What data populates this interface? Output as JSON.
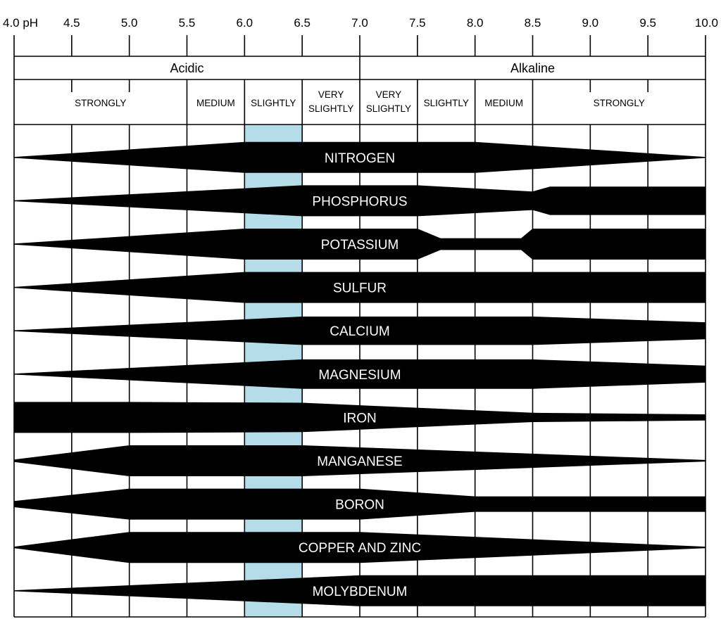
{
  "chart_data": {
    "type": "band-chart",
    "x_axis": {
      "range": [
        4.0,
        10.0
      ],
      "ticks": [
        {
          "value": 4.0,
          "label": "4.0 pH"
        },
        {
          "value": 4.5,
          "label": "4.5"
        },
        {
          "value": 5.0,
          "label": "5.0"
        },
        {
          "value": 5.5,
          "label": "5.5"
        },
        {
          "value": 6.0,
          "label": "6.0"
        },
        {
          "value": 6.5,
          "label": "6.5"
        },
        {
          "value": 7.0,
          "label": "7.0"
        },
        {
          "value": 7.5,
          "label": "7.5"
        },
        {
          "value": 8.0,
          "label": "8.0"
        },
        {
          "value": 8.5,
          "label": "8.5"
        },
        {
          "value": 9.0,
          "label": "9.0"
        },
        {
          "value": 9.5,
          "label": "9.5"
        },
        {
          "value": 10.0,
          "label": "10.0"
        }
      ]
    },
    "groups": [
      {
        "label": "Acidic",
        "from": 4.0,
        "to": 7.0
      },
      {
        "label": "Alkaline",
        "from": 7.0,
        "to": 10.0
      }
    ],
    "degrees": [
      {
        "lines": [
          "STRONGLY"
        ],
        "from": 4.0,
        "to": 5.5
      },
      {
        "lines": [
          "MEDIUM"
        ],
        "from": 5.5,
        "to": 6.0
      },
      {
        "lines": [
          "SLIGHTLY"
        ],
        "from": 6.0,
        "to": 6.5
      },
      {
        "lines": [
          "VERY",
          "SLIGHTLY"
        ],
        "from": 6.5,
        "to": 7.0
      },
      {
        "lines": [
          "VERY",
          "SLIGHTLY"
        ],
        "from": 7.0,
        "to": 7.5
      },
      {
        "lines": [
          "SLIGHTLY"
        ],
        "from": 7.5,
        "to": 8.0
      },
      {
        "lines": [
          "MEDIUM"
        ],
        "from": 8.0,
        "to": 8.5
      },
      {
        "lines": [
          "STRONGLY"
        ],
        "from": 8.5,
        "to": 10.0
      }
    ],
    "highlight_range": [
      6.0,
      6.5
    ],
    "highlight_color": "#b5dde9",
    "band_color": "#000000",
    "nutrients": [
      {
        "name": "NITROGEN",
        "profile": [
          [
            4.0,
            0.03
          ],
          [
            6.0,
            1.0
          ],
          [
            8.0,
            1.0
          ],
          [
            10.0,
            0.03
          ]
        ]
      },
      {
        "name": "PHOSPHORUS",
        "profile": [
          [
            4.0,
            0.03
          ],
          [
            6.5,
            1.0
          ],
          [
            7.5,
            1.0
          ],
          [
            8.5,
            0.6
          ],
          [
            8.65,
            0.92
          ],
          [
            10.0,
            0.92
          ]
        ]
      },
      {
        "name": "POTASSIUM",
        "profile": [
          [
            4.0,
            0.03
          ],
          [
            6.0,
            1.0
          ],
          [
            7.5,
            1.0
          ],
          [
            7.7,
            0.38
          ],
          [
            8.4,
            0.38
          ],
          [
            8.5,
            1.0
          ],
          [
            10.0,
            1.0
          ]
        ]
      },
      {
        "name": "SULFUR",
        "profile": [
          [
            4.0,
            0.03
          ],
          [
            6.0,
            1.0
          ],
          [
            10.0,
            1.0
          ]
        ]
      },
      {
        "name": "CALCIUM",
        "profile": [
          [
            4.0,
            0.03
          ],
          [
            6.5,
            0.92
          ],
          [
            8.5,
            0.92
          ],
          [
            10.0,
            0.55
          ]
        ]
      },
      {
        "name": "MAGNESIUM",
        "profile": [
          [
            4.0,
            0.03
          ],
          [
            6.5,
            0.95
          ],
          [
            8.5,
            0.95
          ],
          [
            10.0,
            0.55
          ]
        ]
      },
      {
        "name": "IRON",
        "profile": [
          [
            4.0,
            1.0
          ],
          [
            5.0,
            1.0
          ],
          [
            6.5,
            0.95
          ],
          [
            8.5,
            0.3
          ],
          [
            10.0,
            0.2
          ]
        ]
      },
      {
        "name": "MANGANESE",
        "profile": [
          [
            4.0,
            0.08
          ],
          [
            5.0,
            1.0
          ],
          [
            6.5,
            1.0
          ],
          [
            10.0,
            0.05
          ]
        ]
      },
      {
        "name": "BORON",
        "profile": [
          [
            4.0,
            0.2
          ],
          [
            5.0,
            1.0
          ],
          [
            7.0,
            1.0
          ],
          [
            8.0,
            0.5
          ],
          [
            10.0,
            0.5
          ]
        ]
      },
      {
        "name": "COPPER AND ZINC",
        "profile": [
          [
            4.0,
            0.05
          ],
          [
            5.0,
            1.0
          ],
          [
            7.0,
            1.0
          ],
          [
            10.0,
            0.05
          ]
        ]
      },
      {
        "name": "MOLYBDENUM",
        "profile": [
          [
            4.0,
            0.03
          ],
          [
            7.0,
            1.0
          ],
          [
            10.0,
            1.0
          ]
        ]
      }
    ]
  }
}
